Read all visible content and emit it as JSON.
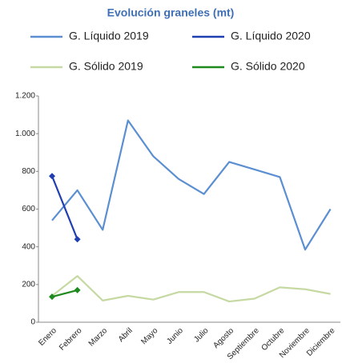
{
  "chart_data": {
    "type": "line",
    "title": "Evolución graneles (mt)",
    "categories": [
      "Enero",
      "Febrero",
      "Marzo",
      "Abril",
      "Mayo",
      "Junio",
      "Julio",
      "Agosto",
      "Septiembre",
      "Octubre",
      "Noviembre",
      "Diciembre"
    ],
    "series": [
      {
        "name": "G. Líquido 2019",
        "color": "#5b8fd1",
        "markers": false,
        "values": [
          540,
          700,
          490,
          1070,
          880,
          760,
          680,
          850,
          810,
          770,
          385,
          600
        ]
      },
      {
        "name": "G. Líquido 2020",
        "color": "#1f3fb0",
        "markers": true,
        "values": [
          775,
          440,
          null,
          null,
          null,
          null,
          null,
          null,
          null,
          null,
          null,
          null
        ]
      },
      {
        "name": "G. Sólido 2019",
        "color": "#c6d9a2",
        "markers": false,
        "values": [
          140,
          245,
          115,
          140,
          120,
          160,
          160,
          110,
          125,
          185,
          175,
          150
        ]
      },
      {
        "name": "G. Sólido 2020",
        "color": "#1e8a1e",
        "markers": true,
        "values": [
          135,
          170,
          null,
          null,
          null,
          null,
          null,
          null,
          null,
          null,
          null,
          null
        ]
      }
    ],
    "ylim": [
      0,
      1200
    ],
    "yticks": [
      0,
      200,
      400,
      600,
      800,
      {
        "value": 1000,
        "label": "1.000"
      },
      {
        "value": 1200,
        "label": "1.200"
      }
    ],
    "grid": false
  }
}
